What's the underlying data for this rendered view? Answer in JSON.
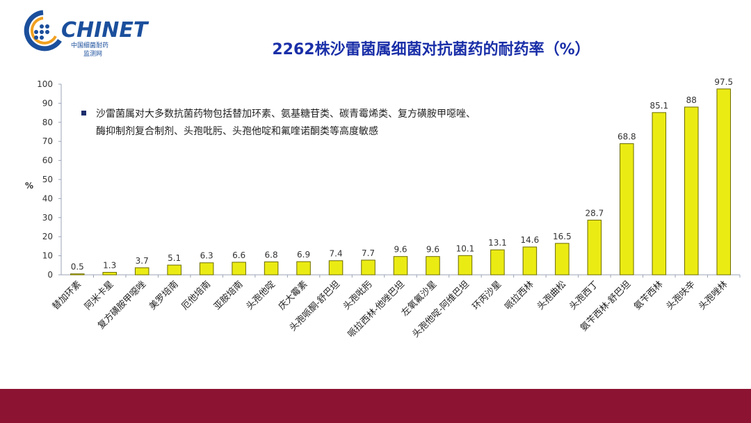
{
  "logo": {
    "text": "CHINET",
    "sub1": "中国细菌耐药",
    "sub2": "监测网"
  },
  "title": "2262株沙雷菌属细菌对抗菌药的耐药率（%）",
  "note": {
    "line1": "沙雷菌属对大多数抗菌药物包括替加环素、氨基糖苷类、碳青霉烯类、复方磺胺甲噁唑、",
    "line2": "酶抑制剂复合制剂、头孢吡肟、头孢他啶和氟喹诺酮类等高度敏感"
  },
  "chart_data": {
    "type": "bar",
    "ylabel": "%",
    "ylim": [
      0,
      100
    ],
    "yticks": [
      0,
      10,
      20,
      30,
      40,
      50,
      60,
      70,
      80,
      90,
      100
    ],
    "grid": false,
    "categories": [
      "替加环素",
      "阿米卡星",
      "复方磺胺甲噁唑",
      "美罗培南",
      "厄他培南",
      "亚胺培南",
      "头孢他啶",
      "庆大霉素",
      "头孢哌酮-舒巴坦",
      "头孢吡肟",
      "哌拉西林-他唑巴坦",
      "左氧氟沙星",
      "头孢他啶-阿维巴坦",
      "环丙沙星",
      "哌拉西林",
      "头孢曲松",
      "头孢西丁",
      "氨苄西林-舒巴坦",
      "氨苄西林",
      "头孢呋辛",
      "头孢唑林"
    ],
    "values": [
      0.5,
      1.3,
      3.7,
      5.1,
      6.3,
      6.6,
      6.8,
      6.9,
      7.4,
      7.7,
      9.6,
      9.6,
      10.1,
      13.1,
      14.6,
      16.5,
      28.7,
      68.8,
      85.1,
      88,
      97.5
    ],
    "value_labels": [
      "0.5",
      "1.3",
      "3.7",
      "5.1",
      "6.3",
      "6.6",
      "6.8",
      "6.9",
      "7.4",
      "7.7",
      "9.6",
      "9.6",
      "10.1",
      "13.1",
      "14.6",
      "16.5",
      "28.7",
      "68.8",
      "85.1",
      "88",
      "97.5"
    ],
    "bar_color": "#ebeb14",
    "bar_edge_color": "#6b6b00"
  },
  "footer_color": "#8c1331"
}
